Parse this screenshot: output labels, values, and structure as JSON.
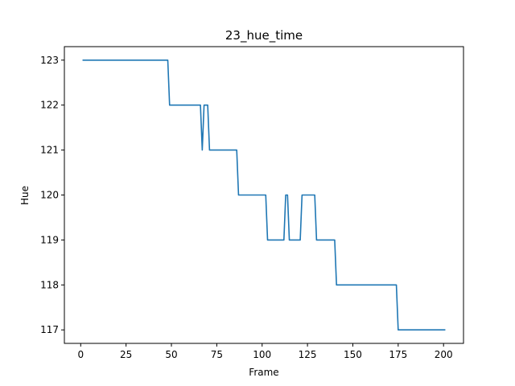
{
  "chart_data": {
    "type": "line",
    "title": "23_hue_time",
    "xlabel": "Frame",
    "ylabel": "Hue",
    "xlim": [
      -9,
      211
    ],
    "ylim": [
      116.7,
      123.3
    ],
    "xticks": [
      0,
      25,
      50,
      75,
      100,
      125,
      150,
      175,
      200
    ],
    "yticks": [
      117,
      118,
      119,
      120,
      121,
      122,
      123
    ],
    "grid": false,
    "line_color": "#1f77b4",
    "series": [
      {
        "x": [
          1,
          48,
          49,
          66,
          67,
          68,
          70,
          71,
          86,
          87,
          102,
          103,
          112,
          113,
          114,
          115,
          121,
          122,
          129,
          130,
          140,
          141,
          174,
          175,
          201
        ],
        "values": [
          123,
          123,
          122,
          122,
          121,
          122,
          122,
          121,
          121,
          120,
          120,
          119,
          119,
          120,
          120,
          119,
          119,
          120,
          120,
          119,
          119,
          118,
          118,
          117,
          117
        ]
      }
    ]
  }
}
